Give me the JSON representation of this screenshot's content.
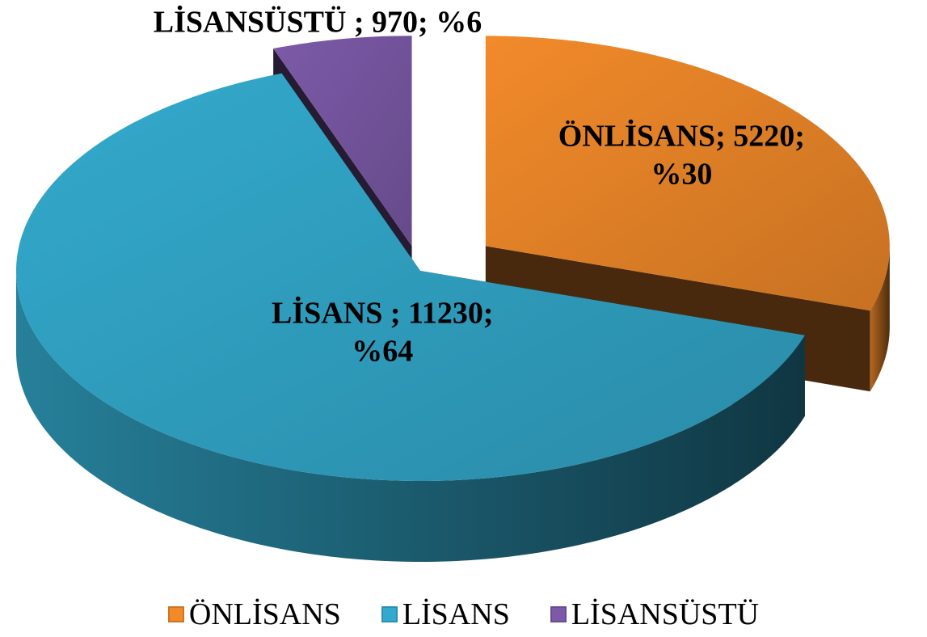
{
  "chart_data": {
    "type": "pie",
    "categories": [
      "ÖNLİSANS",
      "LİSANS",
      "LİSANSÜSTÜ"
    ],
    "values": [
      5220,
      11230,
      970
    ],
    "value_labels": [
      "ÖNLİSANS; 5220; %30",
      "LİSANS ; 11230; %64",
      "LİSANSÜSTÜ ; 970; %6"
    ],
    "colors": [
      "#f28a2a",
      "#33aacd",
      "#7c5aa8"
    ],
    "exploded": [
      true,
      false,
      true
    ],
    "legend": "bottom"
  }
}
